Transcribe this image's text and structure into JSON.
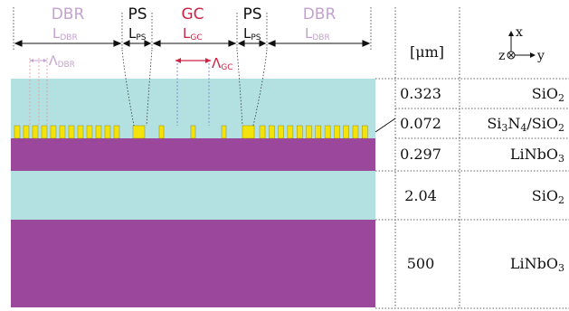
{
  "colors": {
    "sio2": "#b3e0e0",
    "linbo3": "#9b479b",
    "grating": "#f4e30a",
    "dbr_label": "#c4a2cf",
    "gc_label": "#cc2244",
    "black": "#111111"
  },
  "sections": {
    "dbr_left": {
      "title": "DBR",
      "length_main": "L",
      "length_sub": "DBR"
    },
    "ps_left": {
      "title": "PS",
      "length_main": "L",
      "length_sub": "PS"
    },
    "gc": {
      "title": "GC",
      "length_main": "L",
      "length_sub": "GC"
    },
    "ps_right": {
      "title": "PS",
      "length_main": "L",
      "length_sub": "PS"
    },
    "dbr_right": {
      "title": "DBR",
      "length_main": "L",
      "length_sub": "DBR"
    }
  },
  "periods": {
    "dbr": {
      "symbol": "Λ",
      "sub": "DBR"
    },
    "gc": {
      "symbol": "Λ",
      "sub": "GC"
    }
  },
  "table": {
    "unit_header": "[μm]",
    "axes": {
      "x": "x",
      "z": "z",
      "y": "y"
    },
    "rows": [
      {
        "thickness": "0.323",
        "material": "SiO",
        "sub1": "2",
        "mid": "",
        "sub2": ""
      },
      {
        "thickness": "0.072",
        "material": "Si",
        "sub1": "3",
        "mid": "N",
        "sub2": "4",
        "tail": "/SiO",
        "sub3": "2"
      },
      {
        "thickness": "0.297",
        "material": "LiNbO",
        "sub1": "3"
      },
      {
        "thickness": "2.04",
        "material": "SiO",
        "sub1": "2"
      },
      {
        "thickness": "500",
        "material": "LiNbO",
        "sub1": "3"
      }
    ]
  }
}
